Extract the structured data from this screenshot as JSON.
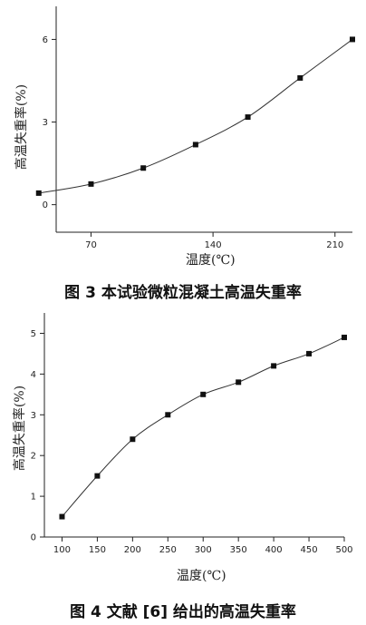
{
  "chart_data": [
    {
      "type": "line",
      "xlabel": "温度(℃)",
      "ylabel": "高温失重率(%)",
      "caption": "图 3   本试验微粒混凝土高温失重率",
      "xlim": [
        50,
        220
      ],
      "ylim": [
        -1.0,
        7.2
      ],
      "xticks": [
        70,
        140,
        210
      ],
      "yticks": [
        0,
        3,
        6
      ],
      "grid": false,
      "series": [
        {
          "x": [
            40,
            70,
            100,
            130,
            160,
            190,
            220
          ],
          "y": [
            0.42,
            0.75,
            1.33,
            2.18,
            3.18,
            4.6,
            6.0
          ]
        }
      ]
    },
    {
      "type": "line",
      "xlabel": "温度(℃)",
      "ylabel": "高温失重率(%)",
      "caption": "图 4   文献 [6] 给出的高温失重率",
      "xlim": [
        75,
        500
      ],
      "ylim": [
        0,
        5.5
      ],
      "xticks": [
        100,
        150,
        200,
        250,
        300,
        350,
        400,
        450,
        500
      ],
      "yticks": [
        0,
        1,
        2,
        3,
        4,
        5
      ],
      "grid": false,
      "series": [
        {
          "x": [
            100,
            150,
            200,
            250,
            300,
            350,
            400,
            450,
            500
          ],
          "y": [
            0.5,
            1.5,
            2.4,
            3.0,
            3.5,
            3.8,
            4.2,
            4.5,
            4.9
          ]
        }
      ]
    }
  ]
}
